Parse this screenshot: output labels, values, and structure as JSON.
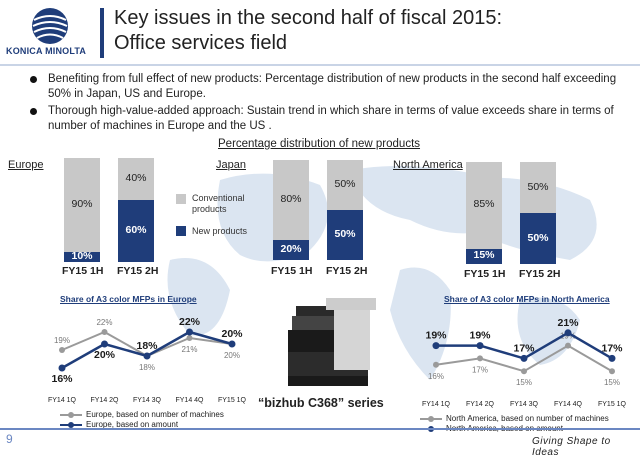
{
  "header": {
    "logo_text": "KONICA MINOLTA",
    "title_line1": "Key issues in the second half of fiscal 2015:",
    "title_line2": "Office services field"
  },
  "bullets": [
    "Benefiting from full effect of new products: Percentage distribution of new products in the second half exceeding 50% in Japan, US and Europe.",
    "Thorough high-value-added approach: Sustain trend in which share in terms of value exceeds share in terms of number of machines in Europe and the US ."
  ],
  "section_title": "Percentage distribution of new products",
  "legend": {
    "conventional": "Conventional products",
    "new": "New products",
    "colors": {
      "conventional": "#c8c8c8",
      "new": "#1f3d7a"
    }
  },
  "chart_data": [
    {
      "type": "bar",
      "region": "Europe",
      "stacked": true,
      "categories": [
        "FY15 1H",
        "FY15 2H"
      ],
      "series": [
        {
          "name": "New products",
          "values": [
            10,
            60
          ],
          "labels": [
            "10%",
            "60%"
          ]
        },
        {
          "name": "Conventional products",
          "values": [
            90,
            40
          ],
          "labels": [
            "90%",
            "40%"
          ]
        }
      ],
      "ylim": [
        0,
        100
      ]
    },
    {
      "type": "bar",
      "region": "Japan",
      "stacked": true,
      "categories": [
        "FY15 1H",
        "FY15 2H"
      ],
      "series": [
        {
          "name": "New products",
          "values": [
            20,
            50
          ],
          "labels": [
            "20%",
            "50%"
          ]
        },
        {
          "name": "Conventional products",
          "values": [
            80,
            50
          ],
          "labels": [
            "80%",
            "50%"
          ]
        }
      ],
      "ylim": [
        0,
        100
      ]
    },
    {
      "type": "bar",
      "region": "North America",
      "stacked": true,
      "categories": [
        "FY15 1H",
        "FY15 2H"
      ],
      "series": [
        {
          "name": "New products",
          "values": [
            15,
            50
          ],
          "labels": [
            "15%",
            "50%"
          ]
        },
        {
          "name": "Conventional products",
          "values": [
            85,
            50
          ],
          "labels": [
            "85%",
            "50%"
          ]
        }
      ],
      "ylim": [
        0,
        100
      ]
    },
    {
      "type": "line",
      "title": "Share of A3 color MFPs in Europe",
      "x": [
        "FY14 1Q",
        "FY14 2Q",
        "FY14 3Q",
        "FY14 4Q",
        "FY15 1Q"
      ],
      "series": [
        {
          "name": "Europe, based on number of machines",
          "values": [
            19,
            22,
            18,
            21,
            20
          ],
          "labels": [
            "19%",
            "22%",
            "18%",
            "21%",
            "20%"
          ],
          "color": "#9a9a9a"
        },
        {
          "name": "Europe, based on amount",
          "values": [
            16,
            20,
            18,
            22,
            20
          ],
          "labels": [
            "16%",
            "20%",
            "18%",
            "22%",
            "20%"
          ],
          "color": "#1f3d7a"
        }
      ],
      "ylim": [
        14,
        24
      ]
    },
    {
      "type": "line",
      "title": "Share of A3 color MFPs in North America",
      "x": [
        "FY14 1Q",
        "FY14 2Q",
        "FY14 3Q",
        "FY14 4Q",
        "FY15 1Q"
      ],
      "series": [
        {
          "name": "North America, based on number of machines",
          "values": [
            16,
            17,
            15,
            19,
            15
          ],
          "labels": [
            "16%",
            "17%",
            "15%",
            "19%",
            "15%"
          ],
          "color": "#9a9a9a"
        },
        {
          "name": "North America, based on amount",
          "values": [
            19,
            19,
            17,
            21,
            17
          ],
          "labels": [
            "19%",
            "19%",
            "17%",
            "21%",
            "17%"
          ],
          "color": "#1f3d7a"
        }
      ],
      "ylim": [
        13,
        23
      ]
    }
  ],
  "product_caption": "“bizhub C368” series",
  "footer": {
    "page_number": "9",
    "slogan": "Giving Shape to Ideas"
  }
}
